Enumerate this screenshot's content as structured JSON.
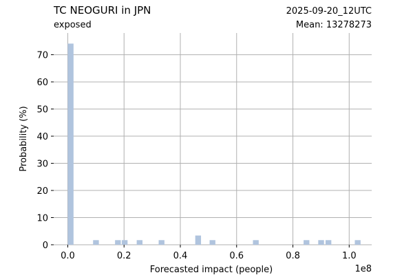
{
  "header": {
    "title": "TC NEOGURI in JPN",
    "subtitle": "exposed",
    "date": "2025-09-20_12UTC",
    "mean": "Mean: 13278273"
  },
  "chart_data": {
    "type": "bar",
    "xlabel": "Forecasted impact (people)",
    "ylabel": "Probability (%)",
    "x_offset_label": "1e8",
    "xlim": [
      -0.05,
      1.08
    ],
    "ylim": [
      0,
      78
    ],
    "xticks": [
      0.0,
      0.2,
      0.4,
      0.6,
      0.8,
      1.0
    ],
    "xtick_labels": [
      "0.0",
      "0.2",
      "0.4",
      "0.6",
      "0.8",
      "1.0"
    ],
    "yticks": [
      0,
      10,
      20,
      30,
      40,
      50,
      60,
      70
    ],
    "ytick_labels": [
      "0",
      "10",
      "20",
      "30",
      "40",
      "50",
      "60",
      "70"
    ],
    "grid": true,
    "bar_width": 0.0205,
    "bins": [
      0.0,
      0.09,
      0.168,
      0.192,
      0.245,
      0.323,
      0.453,
      0.504,
      0.658,
      0.838,
      0.89,
      0.916,
      1.02
    ],
    "values": [
      74.1,
      1.7,
      1.7,
      1.7,
      1.7,
      1.7,
      3.4,
      1.7,
      1.7,
      1.7,
      1.7,
      1.7,
      1.7
    ],
    "colors": {
      "bar": "#b0c4de",
      "grid": "#b0b0b0",
      "date": "#ff0000"
    }
  }
}
